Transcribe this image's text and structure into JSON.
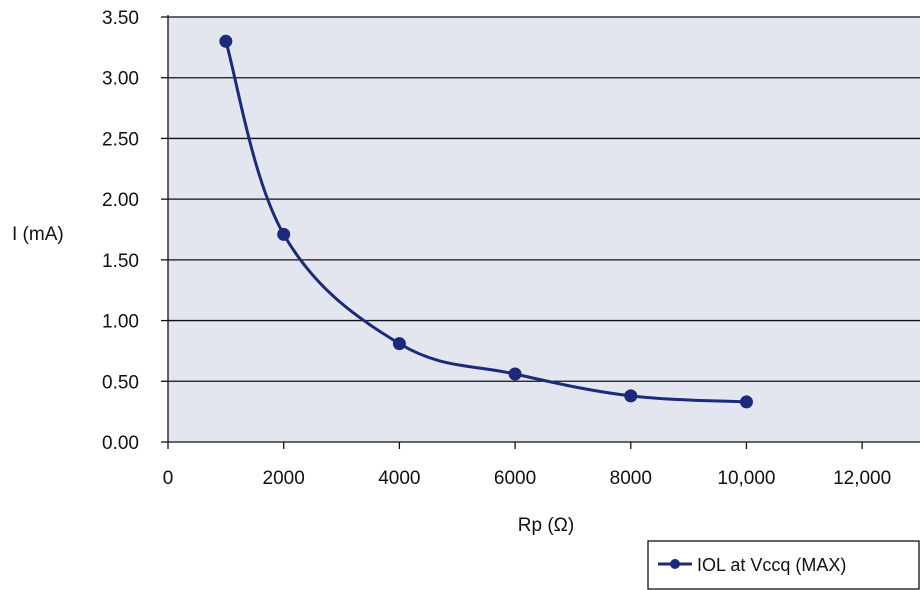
{
  "chart_data": {
    "type": "line",
    "xlabel": "Rp (Ω)",
    "ylabel": "I (mA)",
    "xlim": [
      0,
      13000
    ],
    "ylim": [
      0,
      3.5
    ],
    "xticks": [
      0,
      2000,
      4000,
      6000,
      8000,
      10000,
      12000
    ],
    "xtick_labels": [
      "0",
      "2000",
      "4000",
      "6000",
      "8000",
      "10,000",
      "12,000"
    ],
    "yticks": [
      0,
      0.5,
      1.0,
      1.5,
      2.0,
      2.5,
      3.0,
      3.5
    ],
    "ytick_labels": [
      "0.00",
      "0.50",
      "1.00",
      "1.50",
      "2.00",
      "2.50",
      "3.00",
      "3.50"
    ],
    "grid": "horizontal",
    "legend_position": "bottom-right",
    "series": [
      {
        "name": "IOL at Vccq (MAX)",
        "color": "#1b2a7a",
        "x": [
          1000,
          2000,
          4000,
          6000,
          8000,
          10000
        ],
        "y": [
          3.3,
          1.71,
          0.81,
          0.56,
          0.38,
          0.33
        ]
      }
    ],
    "plot_background": "#e3e5ef"
  }
}
